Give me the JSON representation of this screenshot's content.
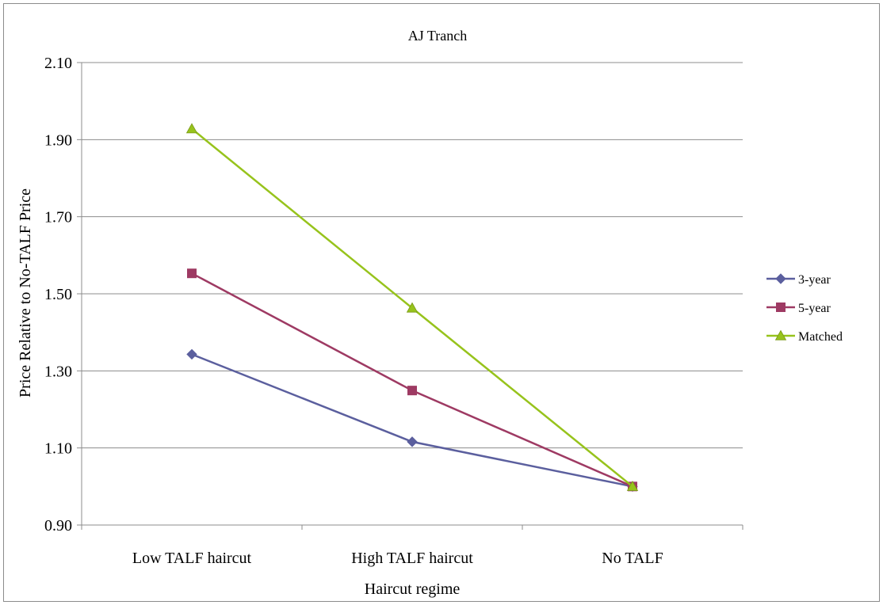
{
  "chart_data": {
    "type": "line",
    "title": "AJ Tranch",
    "xlabel": "Haircut regime",
    "ylabel": "Price Relative to No-TALF Price",
    "categories": [
      "Low TALF haircut",
      "High TALF haircut",
      "No TALF"
    ],
    "ylim": [
      0.9,
      2.1
    ],
    "yticks": [
      "0.90",
      "1.10",
      "1.30",
      "1.50",
      "1.70",
      "1.90",
      "2.10"
    ],
    "grid": true,
    "legend_position": "right",
    "series": [
      {
        "name": "3-year",
        "values": [
          1.343,
          1.116,
          1.0
        ],
        "color": "#5b5f9e",
        "marker": "diamond"
      },
      {
        "name": "5-year",
        "values": [
          1.553,
          1.249,
          1.0
        ],
        "color": "#9e3a63",
        "marker": "square"
      },
      {
        "name": "Matched",
        "values": [
          1.928,
          1.463,
          1.0
        ],
        "color": "#97c31c",
        "marker": "triangle"
      }
    ]
  }
}
